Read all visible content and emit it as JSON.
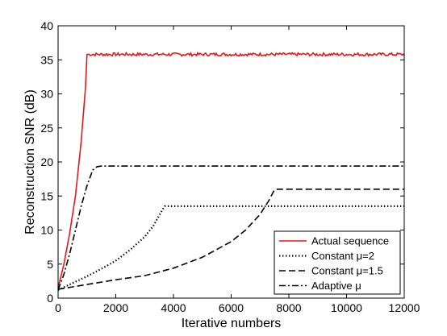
{
  "chart_data": {
    "type": "line",
    "xlabel": "Iterative numbers",
    "ylabel": "Reconstruction SNR (dB)",
    "xlim": [
      0,
      12000
    ],
    "ylim": [
      0,
      40
    ],
    "xticks": [
      0,
      2000,
      4000,
      6000,
      8000,
      10000,
      12000
    ],
    "yticks": [
      0,
      5,
      10,
      15,
      20,
      25,
      30,
      35,
      40
    ],
    "grid": false,
    "legend_position": "bottom-right",
    "series": [
      {
        "name": "Actual sequence",
        "color": "#e8161b",
        "dash": "solid",
        "x": [
          0,
          200,
          400,
          600,
          800,
          950,
          1000,
          2000,
          4000,
          6000,
          8000,
          10000,
          12000
        ],
        "y": [
          1.5,
          5,
          9.5,
          15,
          23,
          31,
          35.8,
          35.8,
          35.8,
          35.8,
          35.8,
          35.8,
          35.8
        ],
        "noise": true
      },
      {
        "name": "Constant μ=2",
        "color": "#000000",
        "dash": "dotted",
        "x": [
          0,
          500,
          1000,
          1500,
          2000,
          2500,
          3000,
          3300,
          3500,
          3650,
          3700,
          6000,
          9000,
          12000
        ],
        "y": [
          1.2,
          2.2,
          3.2,
          4.3,
          5.5,
          7.1,
          9.0,
          10.6,
          12.1,
          13.2,
          13.5,
          13.5,
          13.5,
          13.5
        ]
      },
      {
        "name": "Constant μ=1.5",
        "color": "#000000",
        "dash": "dashed",
        "x": [
          0,
          1000,
          2000,
          3000,
          4000,
          5000,
          6000,
          6500,
          7000,
          7300,
          7500,
          7550,
          9000,
          12000
        ],
        "y": [
          1.3,
          2.0,
          2.7,
          3.3,
          4.4,
          6.0,
          8.3,
          10.0,
          12.3,
          14.3,
          15.9,
          16.0,
          16.0,
          16.0
        ]
      },
      {
        "name": "Adaptive μ",
        "color": "#000000",
        "dash": "dashdot",
        "x": [
          0,
          200,
          400,
          600,
          800,
          1000,
          1200,
          1350,
          1500,
          3000,
          6000,
          9000,
          12000
        ],
        "y": [
          1.2,
          3.5,
          6.5,
          10.0,
          13.5,
          16.5,
          18.8,
          19.3,
          19.4,
          19.4,
          19.4,
          19.4,
          19.4
        ]
      }
    ]
  }
}
